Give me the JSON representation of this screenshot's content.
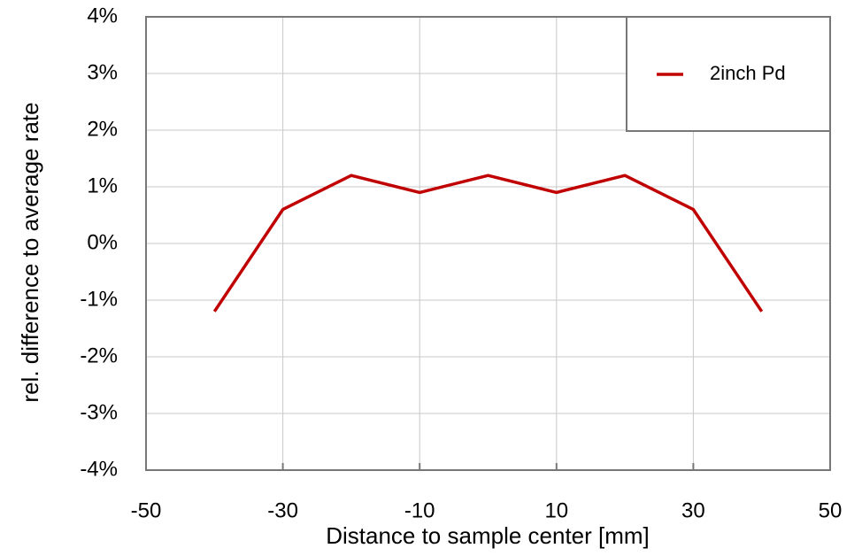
{
  "chart_data": {
    "type": "line",
    "x_label": "Distance to sample center [mm]",
    "y_label": "rel. difference to average rate",
    "x": [
      -40,
      -30,
      -20,
      -10,
      0,
      10,
      20,
      30,
      40
    ],
    "series": [
      {
        "name": "2inch Pd",
        "color": "#c00000",
        "values": [
          -1.2,
          0.6,
          1.2,
          0.9,
          1.2,
          0.9,
          1.2,
          0.6,
          -1.2
        ]
      }
    ],
    "xlim": [
      -50,
      50
    ],
    "xticks": [
      -50,
      -30,
      -10,
      10,
      30,
      50
    ],
    "ylim": [
      -4,
      4
    ],
    "yticks": [
      {
        "value": -4,
        "label": "-4%"
      },
      {
        "value": -3,
        "label": "-3%"
      },
      {
        "value": -2,
        "label": "-2%"
      },
      {
        "value": -1,
        "label": "-1%"
      },
      {
        "value": 0,
        "label": "0%"
      },
      {
        "value": 1,
        "label": "1%"
      },
      {
        "value": 2,
        "label": "2%"
      },
      {
        "value": 3,
        "label": "3%"
      },
      {
        "value": 4,
        "label": "4%"
      }
    ],
    "grid": true,
    "legend": "upper right"
  }
}
